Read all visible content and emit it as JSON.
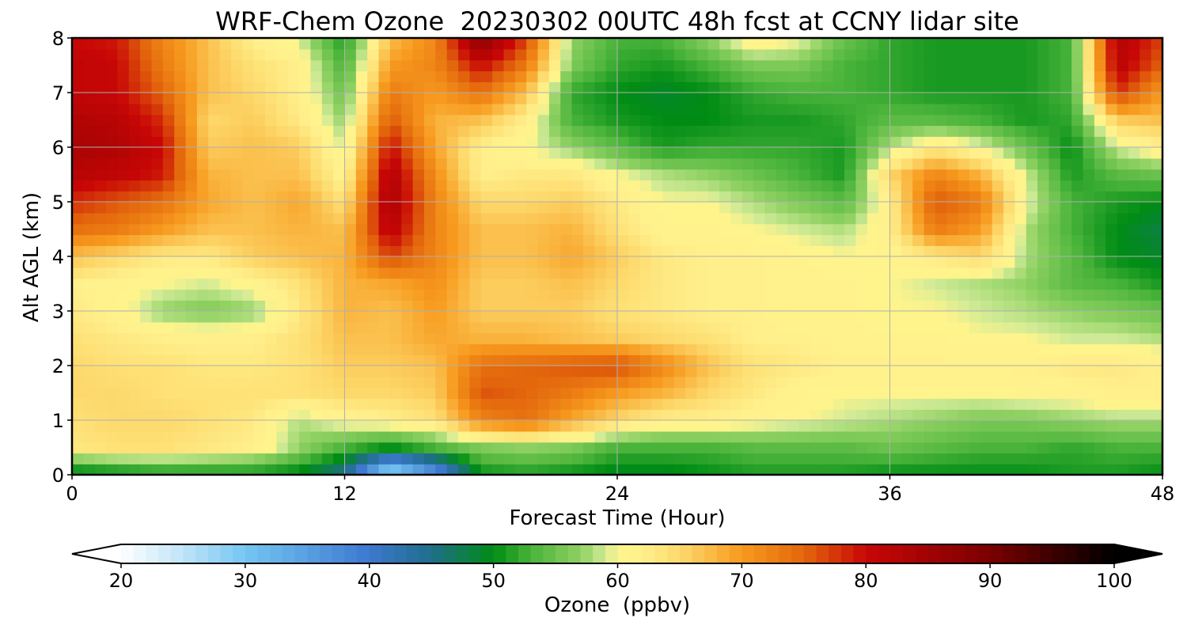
{
  "chart_data": {
    "type": "heatmap",
    "title": "WRF-Chem Ozone  20230302 00UTC 48h fcst at CCNY lidar site",
    "xlabel": "Forecast Time (Hour)",
    "ylabel": "Alt AGL (km)",
    "xlim": [
      0,
      48
    ],
    "ylim": [
      0,
      8
    ],
    "xticks": [
      0,
      12,
      24,
      36,
      48
    ],
    "yticks": [
      0,
      1,
      2,
      3,
      4,
      5,
      6,
      7,
      8
    ],
    "grid": true,
    "x": [
      0,
      2,
      4,
      6,
      8,
      10,
      12,
      14,
      16,
      18,
      20,
      22,
      24,
      26,
      28,
      30,
      32,
      34,
      36,
      38,
      40,
      42,
      44,
      46,
      48
    ],
    "y": [
      0,
      0.5,
      1,
      1.5,
      2,
      2.5,
      3,
      3.5,
      4,
      4.5,
      5,
      5.5,
      6,
      6.5,
      7,
      7.5,
      8
    ],
    "z": [
      [
        48,
        49,
        50,
        50,
        50,
        49,
        44,
        25,
        35,
        50,
        51,
        50,
        49,
        49,
        50,
        51,
        51,
        51,
        50,
        50,
        50,
        50,
        51,
        51,
        50
      ],
      [
        63,
        64,
        64,
        63,
        62,
        57,
        53,
        50,
        53,
        56,
        57,
        56,
        53,
        53,
        53,
        54,
        54,
        54,
        55,
        54,
        53,
        53,
        52,
        53,
        53
      ],
      [
        64,
        65,
        65,
        64,
        63,
        58,
        61,
        62,
        64,
        72,
        74,
        69,
        65,
        62,
        62,
        61,
        60,
        59,
        58,
        57,
        56,
        56,
        57,
        58,
        58
      ],
      [
        65,
        65,
        64,
        64,
        64,
        64,
        65,
        65,
        66,
        76,
        75,
        73,
        70,
        68,
        65,
        63,
        61,
        60,
        60,
        60,
        60,
        61,
        61,
        62,
        62
      ],
      [
        65,
        64,
        64,
        63,
        63,
        64,
        66,
        66,
        67,
        74,
        75,
        76,
        77,
        72,
        67,
        64,
        63,
        62,
        62,
        62,
        62,
        62,
        63,
        63,
        62
      ],
      [
        64,
        63,
        62,
        62,
        62,
        64,
        67,
        67,
        69,
        68,
        68,
        67,
        66,
        65,
        64,
        62,
        62,
        61,
        61,
        61,
        60,
        60,
        59,
        59,
        58
      ],
      [
        63,
        61,
        57,
        56,
        57,
        63,
        68,
        67,
        70,
        66,
        66,
        66,
        64,
        63,
        62,
        62,
        61,
        61,
        60,
        60,
        59,
        58,
        57,
        56,
        55
      ],
      [
        62,
        61,
        60,
        59,
        61,
        64,
        68,
        69,
        71,
        66,
        66,
        67,
        65,
        63,
        62,
        62,
        61,
        61,
        60,
        59,
        58,
        57,
        54,
        53,
        51
      ],
      [
        67,
        65,
        63,
        63,
        66,
        67,
        68,
        77,
        72,
        67,
        67,
        69,
        66,
        63,
        62,
        62,
        61,
        60,
        61,
        63,
        65,
        58,
        54,
        50,
        49
      ],
      [
        74,
        73,
        70,
        67,
        67,
        68,
        67,
        82,
        72,
        67,
        67,
        68,
        64,
        61,
        61,
        60,
        59,
        58,
        62,
        73,
        70,
        58,
        53,
        50,
        48
      ],
      [
        78,
        76,
        74,
        69,
        67,
        69,
        64,
        84,
        72,
        65,
        65,
        66,
        63,
        60,
        60,
        58,
        56,
        54,
        62,
        76,
        73,
        60,
        53,
        51,
        50
      ],
      [
        82,
        81,
        79,
        68,
        67,
        67,
        61,
        83,
        71,
        62,
        63,
        63,
        60,
        58,
        57,
        55,
        53,
        51,
        65,
        72,
        68,
        59,
        51,
        54,
        55
      ],
      [
        84,
        83,
        80,
        66,
        67,
        66,
        59,
        80,
        69,
        62,
        60,
        57,
        54,
        51,
        52,
        52,
        52,
        51,
        58,
        63,
        60,
        55,
        50,
        59,
        62
      ],
      [
        83,
        82,
        78,
        65,
        66,
        63,
        57,
        76,
        68,
        67,
        62,
        53,
        51,
        50,
        50,
        51,
        51,
        52,
        54,
        54,
        53,
        51,
        52,
        66,
        67
      ],
      [
        81,
        80,
        75,
        67,
        65,
        62,
        55,
        73,
        70,
        74,
        67,
        52,
        50,
        49,
        50,
        52,
        53,
        53,
        52,
        51,
        51,
        51,
        53,
        78,
        70
      ],
      [
        81,
        80,
        73,
        67,
        64,
        62,
        53,
        70,
        72,
        80,
        73,
        56,
        52,
        51,
        53,
        56,
        56,
        53,
        52,
        51,
        51,
        51,
        53,
        82,
        75
      ],
      [
        80,
        79,
        72,
        67,
        62,
        59,
        51,
        67,
        72,
        88,
        77,
        57,
        53,
        53,
        57,
        62,
        60,
        55,
        52,
        51,
        51,
        51,
        53,
        83,
        77
      ]
    ],
    "colorbar": {
      "label": "Ozone  (ppbv)",
      "min": 20,
      "max": 100,
      "ticks": [
        20,
        30,
        40,
        50,
        60,
        70,
        80,
        90,
        100
      ],
      "extend": "both",
      "stops": [
        [
          20,
          "#ffffff"
        ],
        [
          25,
          "#bfe4f8"
        ],
        [
          30,
          "#74c6f2"
        ],
        [
          40,
          "#3d78cf"
        ],
        [
          45,
          "#1f6e8a"
        ],
        [
          50,
          "#008c14"
        ],
        [
          53,
          "#49b33a"
        ],
        [
          57,
          "#8fd162"
        ],
        [
          59,
          "#cfea96"
        ],
        [
          60,
          "#fff48c"
        ],
        [
          62,
          "#fff08c"
        ],
        [
          65,
          "#fdd96c"
        ],
        [
          70,
          "#f79a1e"
        ],
        [
          75,
          "#e3670c"
        ],
        [
          80,
          "#c80606"
        ],
        [
          90,
          "#7a0000"
        ],
        [
          100,
          "#000000"
        ]
      ]
    }
  }
}
